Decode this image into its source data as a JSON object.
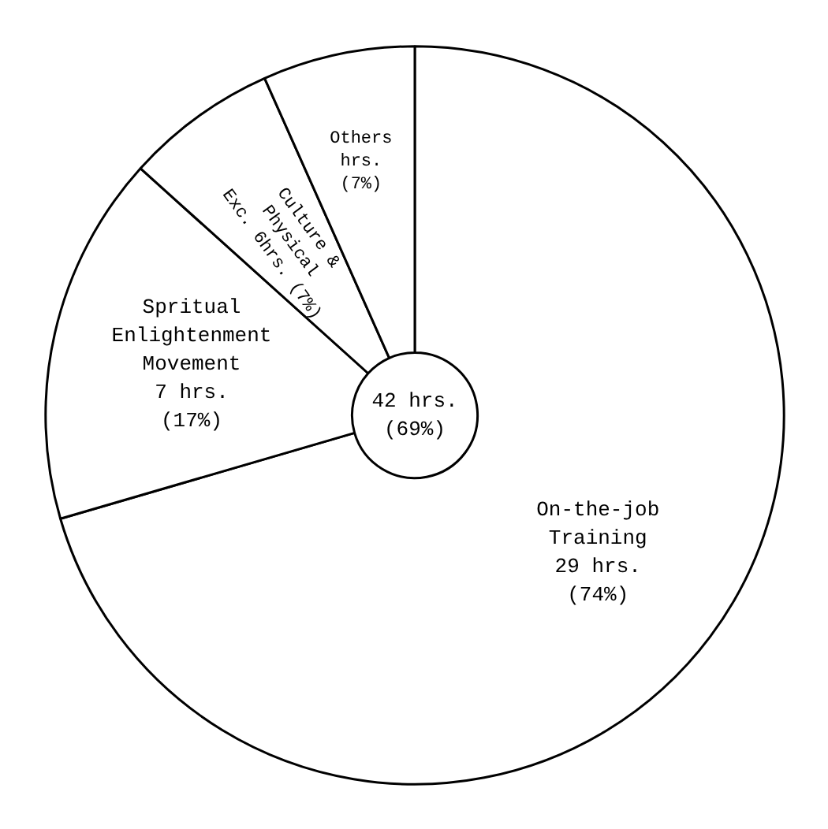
{
  "chart_data": {
    "type": "donut",
    "categories": [
      "On-the-job\nTraining",
      "Spritual\nEnlightenment\nMovement",
      "Culture &\nPhysical\nExc.",
      "Others"
    ],
    "values": [
      74,
      17,
      7,
      7
    ],
    "value_labels": [
      "29 hrs.\n(74%)",
      "7 hrs.\n(17%)",
      "6hrs.\n(7%)",
      "hrs.\n(7%)"
    ],
    "colors": [
      "#ffffff",
      "#ffffff",
      "#ffffff",
      "#ffffff"
    ],
    "annotations": [
      "42 hrs.\n(69%)"
    ]
  }
}
